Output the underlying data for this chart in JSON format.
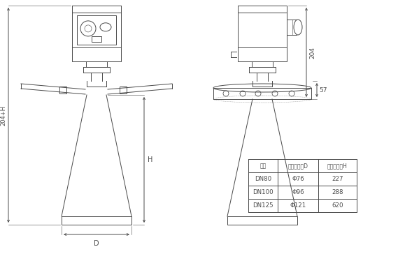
{
  "bg_color": "#ffffff",
  "line_color": "#4a4a4a",
  "table_headers": [
    "法兰",
    "喇叭口直径D",
    "喇叭口高度H"
  ],
  "table_rows": [
    [
      "DN80",
      "Φ76",
      "227"
    ],
    [
      "DN100",
      "Φ96",
      "288"
    ],
    [
      "DN125",
      "Φ121",
      "620"
    ]
  ],
  "dim_204": "204",
  "dim_57": "57",
  "dim_H": "H",
  "dim_204H": "204+H",
  "dim_D": "D"
}
